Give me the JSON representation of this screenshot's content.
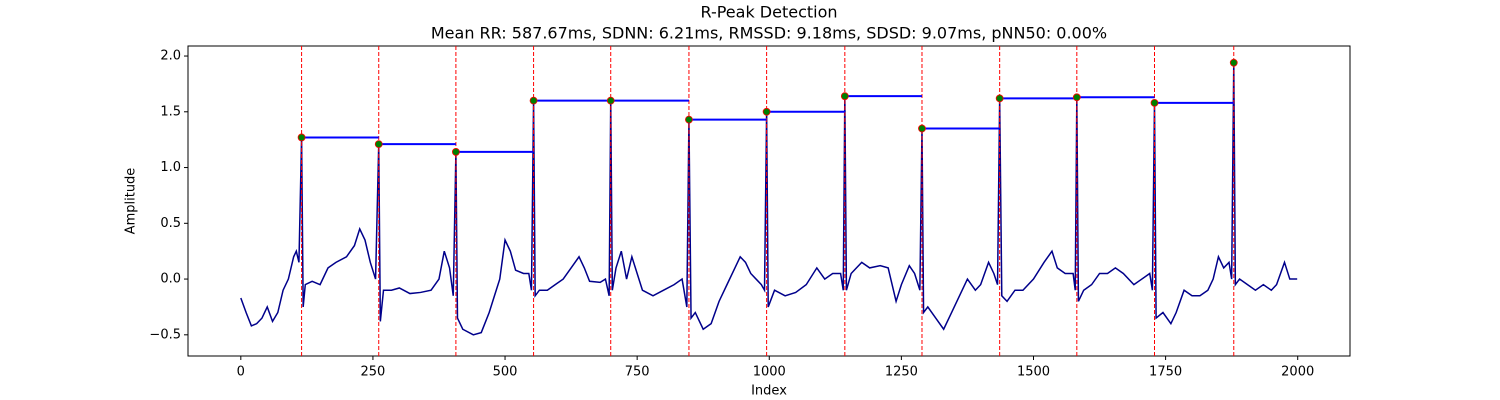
{
  "chart_data": {
    "type": "line",
    "title": "R-Peak Detection",
    "subtitle": "Mean RR: 587.67ms, SDNN: 6.21ms, RMSSD: 9.18ms, SDSD: 9.07ms, pNN50: 0.00%",
    "x_label": "Index",
    "y_label": "Amplitude",
    "xlim": [
      -99.95,
      2098.95
    ],
    "ylim": [
      -0.69,
      2.09
    ],
    "xticks": [
      0,
      250,
      500,
      750,
      1000,
      1250,
      1500,
      1750,
      2000
    ],
    "yticks": [
      {
        "value": -0.5,
        "label": "−0.5"
      },
      {
        "value": 0,
        "label": "0.0"
      },
      0.5,
      {
        "value": 1,
        "label": "1.0"
      },
      1.5,
      {
        "value": 2,
        "label": "2.0"
      }
    ],
    "signal": {
      "color": "#00008b",
      "x": [
        0,
        10,
        20,
        30,
        40,
        50,
        60,
        70,
        80,
        90,
        100,
        105,
        110,
        115,
        118,
        122,
        135,
        150,
        165,
        180,
        200,
        215,
        225,
        235,
        245,
        255,
        261,
        264,
        270,
        285,
        300,
        320,
        340,
        360,
        375,
        385,
        395,
        402,
        407,
        410,
        420,
        440,
        455,
        470,
        480,
        490,
        500,
        510,
        520,
        535,
        545,
        550,
        554,
        557,
        565,
        580,
        595,
        610,
        625,
        640,
        650,
        660,
        680,
        690,
        697,
        700,
        703,
        710,
        720,
        730,
        740,
        750,
        760,
        780,
        800,
        820,
        835,
        844,
        848,
        852,
        860,
        875,
        890,
        905,
        920,
        935,
        945,
        955,
        965,
        975,
        985,
        991,
        995,
        998,
        1010,
        1030,
        1050,
        1070,
        1090,
        1105,
        1120,
        1135,
        1140,
        1143,
        1146,
        1155,
        1165,
        1175,
        1190,
        1210,
        1225,
        1240,
        1250,
        1265,
        1275,
        1285,
        1289,
        1292,
        1300,
        1315,
        1330,
        1345,
        1360,
        1375,
        1390,
        1400,
        1415,
        1425,
        1432,
        1436,
        1440,
        1450,
        1465,
        1480,
        1500,
        1520,
        1535,
        1545,
        1560,
        1575,
        1579,
        1582,
        1585,
        1595,
        1610,
        1625,
        1640,
        1655,
        1670,
        1690,
        1705,
        1720,
        1725,
        1729,
        1732,
        1745,
        1760,
        1770,
        1785,
        1800,
        1815,
        1830,
        1840,
        1850,
        1860,
        1870,
        1875,
        1879,
        1882,
        1890,
        1905,
        1920,
        1935,
        1950,
        1960,
        1975,
        1985,
        1990,
        1999
      ],
      "y": [
        -0.17,
        -0.3,
        -0.42,
        -0.4,
        -0.35,
        -0.25,
        -0.38,
        -0.3,
        -0.1,
        0.0,
        0.2,
        0.25,
        0.15,
        1.27,
        -0.25,
        -0.05,
        -0.02,
        -0.05,
        0.1,
        0.15,
        0.2,
        0.3,
        0.45,
        0.35,
        0.15,
        0.0,
        1.21,
        -0.38,
        -0.1,
        -0.1,
        -0.08,
        -0.13,
        -0.12,
        -0.1,
        0.0,
        0.25,
        0.1,
        -0.15,
        1.14,
        -0.35,
        -0.45,
        -0.5,
        -0.48,
        -0.3,
        -0.15,
        0.0,
        0.35,
        0.25,
        0.08,
        0.05,
        0.05,
        -0.1,
        1.6,
        -0.15,
        -0.1,
        -0.1,
        -0.05,
        0.0,
        0.1,
        0.2,
        0.1,
        -0.02,
        -0.03,
        0.0,
        -0.15,
        1.6,
        -0.1,
        0.1,
        0.25,
        0.0,
        0.2,
        0.05,
        -0.1,
        -0.15,
        -0.1,
        -0.05,
        0.0,
        -0.25,
        1.43,
        -0.35,
        -0.3,
        -0.45,
        -0.4,
        -0.2,
        -0.05,
        0.1,
        0.2,
        0.15,
        0.05,
        0.0,
        -0.05,
        -0.1,
        1.5,
        -0.25,
        -0.1,
        -0.15,
        -0.12,
        -0.05,
        0.1,
        0.0,
        0.05,
        0.05,
        -0.1,
        1.64,
        -0.1,
        0.05,
        0.1,
        0.15,
        0.1,
        0.12,
        0.1,
        -0.2,
        -0.05,
        0.12,
        0.05,
        -0.1,
        1.35,
        -0.3,
        -0.25,
        -0.35,
        -0.45,
        -0.3,
        -0.15,
        0.0,
        -0.1,
        -0.05,
        0.15,
        0.05,
        -0.05,
        1.62,
        -0.15,
        -0.2,
        -0.1,
        -0.1,
        0.0,
        0.15,
        0.25,
        0.1,
        0.05,
        0.05,
        -0.1,
        1.63,
        -0.2,
        -0.1,
        -0.05,
        0.05,
        0.05,
        0.1,
        0.05,
        -0.05,
        0.0,
        0.05,
        -0.1,
        1.58,
        -0.35,
        -0.3,
        -0.4,
        -0.3,
        -0.1,
        -0.15,
        -0.15,
        -0.1,
        0.0,
        0.2,
        0.1,
        0.15,
        0.0,
        1.94,
        -0.05,
        0.0,
        -0.05,
        -0.1,
        -0.05,
        -0.1,
        -0.05,
        0.15,
        0.0,
        0.0,
        0.0
      ]
    },
    "peaks": {
      "color": "#008000",
      "edge_color": "#ff0000",
      "line_color": "#ff0000",
      "rr_color": "#0000ff",
      "x": [
        115,
        261,
        407,
        554,
        700,
        848,
        995,
        1143,
        1289,
        1436,
        1582,
        1729,
        1879
      ],
      "y": [
        1.27,
        1.21,
        1.14,
        1.6,
        1.6,
        1.43,
        1.5,
        1.64,
        1.35,
        1.62,
        1.63,
        1.58,
        1.94
      ]
    }
  }
}
